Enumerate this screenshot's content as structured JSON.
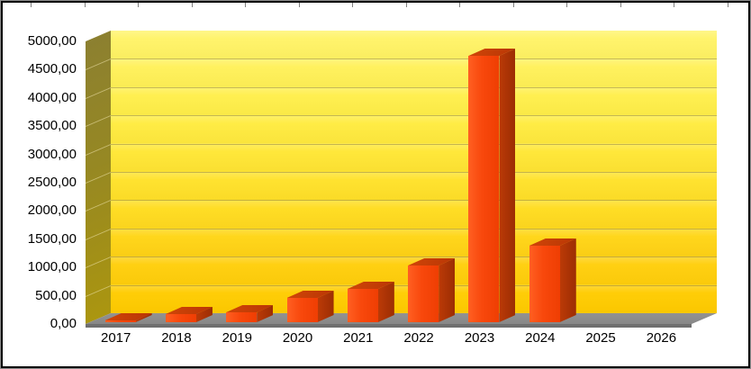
{
  "chart_data": {
    "type": "bar",
    "projection": "3d",
    "title": "",
    "xlabel": "",
    "ylabel": "",
    "legend": "none",
    "grid": true,
    "number_format": "comma-decimal",
    "categories": [
      "2017",
      "2018",
      "2019",
      "2020",
      "2021",
      "2022",
      "2023",
      "2024",
      "2025",
      "2026"
    ],
    "values": [
      30,
      140,
      180,
      430,
      590,
      1000,
      4710,
      1350,
      0,
      0
    ],
    "ylim": [
      0,
      5000
    ],
    "y_ticks": [
      {
        "value": 0,
        "label": "0,00"
      },
      {
        "value": 500,
        "label": "500,00"
      },
      {
        "value": 1000,
        "label": "1000,00"
      },
      {
        "value": 1500,
        "label": "1500,00"
      },
      {
        "value": 2000,
        "label": "2000,00"
      },
      {
        "value": 2500,
        "label": "2500,00"
      },
      {
        "value": 3000,
        "label": "3000,00"
      },
      {
        "value": 3500,
        "label": "3500,00"
      },
      {
        "value": 4000,
        "label": "4000,00"
      },
      {
        "value": 4500,
        "label": "4500,00"
      },
      {
        "value": 5000,
        "label": "5000,00"
      }
    ]
  },
  "colors": {
    "bar_front": "#f8480c",
    "bar_side": "#9c2d03",
    "bar_top": "#c03a06",
    "wall_top": "#fff470",
    "wall_bottom": "#ffcb00",
    "side_wall": "#9a8c22",
    "floor": "#878787",
    "gridline": "#8d8050",
    "background": "#ffffff",
    "frame_border": "#000000",
    "label_text": "#000000"
  }
}
